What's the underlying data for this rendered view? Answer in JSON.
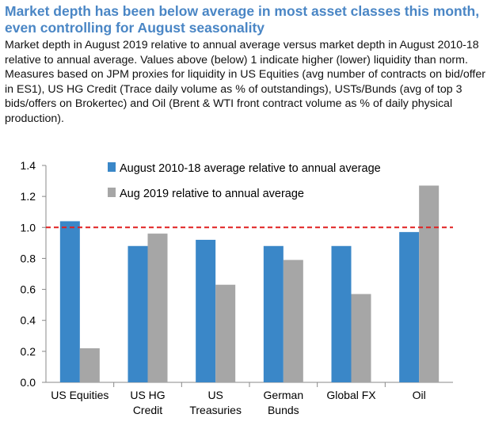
{
  "title": "Market depth has been below average in most asset classes this month, even controlling for August seasonality",
  "subtitle": "Market depth in August 2019 relative to annual average versus market depth in August 2010-18 relative to annual average. Values above (below) 1 indicate higher (lower) liquidity than norm. Measures based on JPM proxies for liquidity in US Equities (avg number of contracts on bid/offer in ES1), US HG Credit (Trace daily volume as % of outstandings), USTs/Bunds (avg of top 3 bids/offers on Brokertec) and Oil (Brent & WTI front contract volume as % of daily physical production).",
  "chart_data": {
    "type": "bar",
    "categories": [
      [
        "US Equities"
      ],
      [
        "US HG",
        "Credit"
      ],
      [
        "US",
        "Treasuries"
      ],
      [
        "German",
        "Bunds"
      ],
      [
        "Global FX"
      ],
      [
        "Oil"
      ]
    ],
    "series": [
      {
        "name": "August 2010-18 average relative to annual average",
        "color": "#3a87c8",
        "values": [
          1.04,
          0.88,
          0.92,
          0.88,
          0.88,
          0.97
        ]
      },
      {
        "name": "Aug 2019 relative to annual average",
        "color": "#a6a6a6",
        "values": [
          0.22,
          0.96,
          0.63,
          0.79,
          0.57,
          1.27
        ]
      }
    ],
    "ylim": [
      0,
      1.4
    ],
    "yticks": [
      "0.0",
      "0.2",
      "0.4",
      "0.6",
      "0.8",
      "1.0",
      "1.2",
      "1.4"
    ],
    "reference_line": {
      "value": 1.0,
      "color": "#e02020",
      "style": "dashed"
    },
    "legend_position": "top-left",
    "grid": false
  }
}
